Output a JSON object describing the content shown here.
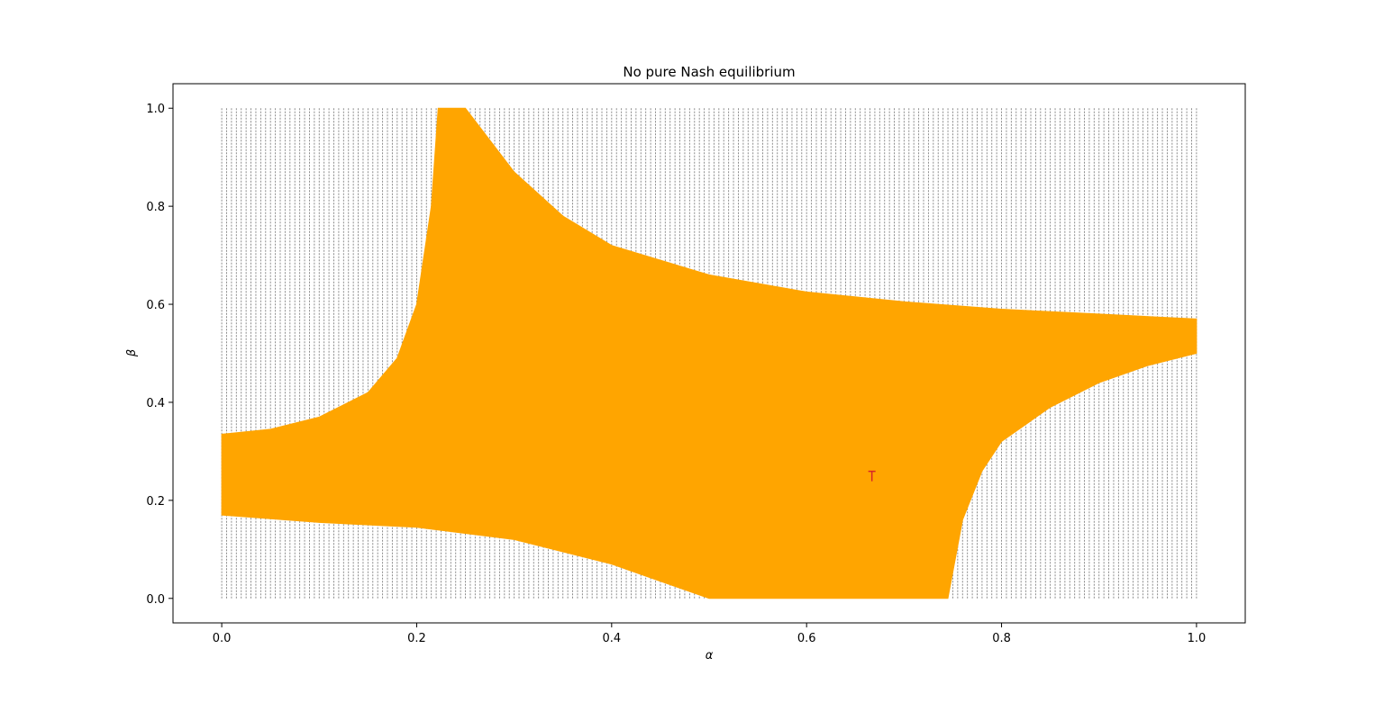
{
  "chart_data": {
    "type": "area",
    "title": "No pure Nash equilibrium",
    "xlabel": "α",
    "ylabel": "β",
    "xlim": [
      -0.05,
      1.05
    ],
    "ylim": [
      -0.05,
      1.05
    ],
    "xticks": [
      0.0,
      0.2,
      0.4,
      0.6,
      0.8,
      1.0
    ],
    "yticks": [
      0.0,
      0.2,
      0.4,
      0.6,
      0.8,
      1.0
    ],
    "xtick_labels": [
      "0.0",
      "0.2",
      "0.4",
      "0.6",
      "0.8",
      "1.0"
    ],
    "ytick_labels": [
      "0.0",
      "0.2",
      "0.4",
      "0.6",
      "0.8",
      "1.0"
    ],
    "grid": false,
    "legend": "none",
    "background_field": {
      "description": "dense grid of small gray arrows over the unit square",
      "x_range": [
        0,
        1
      ],
      "y_range": [
        0,
        1
      ],
      "color": "#808080"
    },
    "series": [
      {
        "fill_color": "#FFA500",
        "polygon": [
          [
            0.0,
            0.335
          ],
          [
            0.05,
            0.345
          ],
          [
            0.1,
            0.37
          ],
          [
            0.15,
            0.42
          ],
          [
            0.18,
            0.49
          ],
          [
            0.2,
            0.6
          ],
          [
            0.215,
            0.8
          ],
          [
            0.222,
            1.0
          ],
          [
            0.25,
            1.0
          ],
          [
            0.3,
            0.87
          ],
          [
            0.35,
            0.78
          ],
          [
            0.4,
            0.72
          ],
          [
            0.5,
            0.66
          ],
          [
            0.6,
            0.625
          ],
          [
            0.7,
            0.605
          ],
          [
            0.8,
            0.59
          ],
          [
            0.9,
            0.58
          ],
          [
            1.0,
            0.57
          ],
          [
            1.0,
            0.5
          ],
          [
            0.95,
            0.475
          ],
          [
            0.9,
            0.44
          ],
          [
            0.85,
            0.39
          ],
          [
            0.8,
            0.32
          ],
          [
            0.78,
            0.26
          ],
          [
            0.76,
            0.16
          ],
          [
            0.745,
            0.0
          ],
          [
            0.5,
            0.0
          ],
          [
            0.4,
            0.07
          ],
          [
            0.3,
            0.12
          ],
          [
            0.2,
            0.145
          ],
          [
            0.1,
            0.155
          ],
          [
            0.0,
            0.17
          ]
        ]
      }
    ],
    "annotations": [
      {
        "type": "marker",
        "x": 0.667,
        "y": 0.25,
        "color": "#D62728"
      }
    ]
  }
}
